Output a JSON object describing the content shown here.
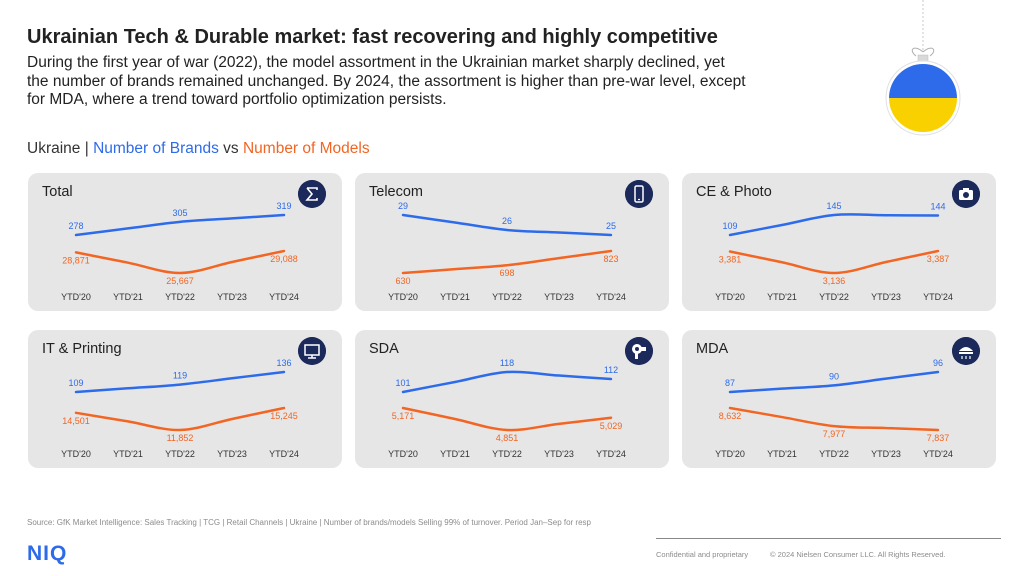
{
  "header": {
    "title": "Ukrainian Tech & Durable market: fast recovering and highly competitive",
    "subtitle": "During the first year of war (2022), the model assortment in the Ukrainian market sharply declined, yet the number of brands remained unchanged. By 2024, the assortment is higher than pre-war level, except for MDA, where a trend toward portfolio optimization persists."
  },
  "legend": {
    "prefix": "Ukraine | ",
    "brands": "Number of Brands",
    "middle": " vs ",
    "models": "Number of Models"
  },
  "colors": {
    "brands": "#2d6bea",
    "models": "#f26522",
    "icon_bg": "#1b2a5b",
    "panel_bg": "#e6e6e6"
  },
  "chart_data": [
    {
      "type": "line",
      "title": "Total",
      "icon": "sigma-icon",
      "categories": [
        "YTD'20",
        "YTD'21",
        "YTD'22",
        "YTD'23",
        "YTD'24"
      ],
      "series": [
        {
          "name": "Number of Brands",
          "values": [
            278,
            null,
            305,
            null,
            319
          ],
          "labels": [
            "278",
            "",
            "305",
            "",
            "319"
          ]
        },
        {
          "name": "Number of Models",
          "values": [
            28871,
            null,
            25667,
            null,
            29088
          ],
          "labels": [
            "28,871",
            "",
            "25,667",
            "",
            "29,088"
          ]
        }
      ]
    },
    {
      "type": "line",
      "title": "Telecom",
      "icon": "smartphone-icon",
      "categories": [
        "YTD'20",
        "YTD'21",
        "YTD'22",
        "YTD'23",
        "YTD'24"
      ],
      "series": [
        {
          "name": "Number of Brands",
          "values": [
            29,
            null,
            26,
            null,
            25
          ],
          "labels": [
            "29",
            "",
            "26",
            "",
            "25"
          ]
        },
        {
          "name": "Number of Models",
          "values": [
            630,
            null,
            698,
            null,
            823
          ],
          "labels": [
            "630",
            "",
            "698",
            "",
            "823"
          ]
        }
      ]
    },
    {
      "type": "line",
      "title": "CE & Photo",
      "icon": "camera-icon",
      "categories": [
        "YTD'20",
        "YTD'21",
        "YTD'22",
        "YTD'23",
        "YTD'24"
      ],
      "series": [
        {
          "name": "Number of Brands",
          "values": [
            109,
            null,
            145,
            null,
            144
          ],
          "labels": [
            "109",
            "",
            "145",
            "",
            "144"
          ]
        },
        {
          "name": "Number of Models",
          "values": [
            3381,
            null,
            3136,
            null,
            3387
          ],
          "labels": [
            "3,381",
            "",
            "3,136",
            "",
            "3,387"
          ]
        }
      ]
    },
    {
      "type": "line",
      "title": "IT & Printing",
      "icon": "monitor-icon",
      "categories": [
        "YTD'20",
        "YTD'21",
        "YTD'22",
        "YTD'23",
        "YTD'24"
      ],
      "series": [
        {
          "name": "Number of Brands",
          "values": [
            109,
            null,
            119,
            null,
            136
          ],
          "labels": [
            "109",
            "",
            "119",
            "",
            "136"
          ]
        },
        {
          "name": "Number of Models",
          "values": [
            14501,
            null,
            11852,
            null,
            15245
          ],
          "labels": [
            "14,501",
            "",
            "11,852",
            "",
            "15,245"
          ]
        }
      ]
    },
    {
      "type": "line",
      "title": "SDA",
      "icon": "hairdryer-icon",
      "categories": [
        "YTD'20",
        "YTD'21",
        "YTD'22",
        "YTD'23",
        "YTD'24"
      ],
      "series": [
        {
          "name": "Number of Brands",
          "values": [
            101,
            null,
            118,
            null,
            112
          ],
          "labels": [
            "101",
            "",
            "118",
            "",
            "112"
          ]
        },
        {
          "name": "Number of Models",
          "values": [
            5171,
            null,
            4851,
            null,
            5029
          ],
          "labels": [
            "5,171",
            "",
            "4,851",
            "",
            "5,029"
          ]
        }
      ]
    },
    {
      "type": "line",
      "title": "MDA",
      "icon": "cooktop-icon",
      "categories": [
        "YTD'20",
        "YTD'21",
        "YTD'22",
        "YTD'23",
        "YTD'24"
      ],
      "series": [
        {
          "name": "Number of Brands",
          "values": [
            87,
            null,
            90,
            null,
            96
          ],
          "labels": [
            "87",
            "",
            "90",
            "",
            "96"
          ]
        },
        {
          "name": "Number of Models",
          "values": [
            8632,
            null,
            7977,
            null,
            7837
          ],
          "labels": [
            "8,632",
            "",
            "7,977",
            "",
            "7,837"
          ]
        }
      ]
    }
  ],
  "footer": {
    "source": "Source: GfK Market Intelligence: Sales Tracking | TCG | Retail Channels | Ukraine | Number of brands/models Selling 99% of turnover. Period Jan–Sep for resp",
    "confidential": "Confidential and proprietary",
    "copyright": "© 2024 Nielsen Consumer LLC. All Rights Reserved.",
    "logo": "NIQ"
  }
}
